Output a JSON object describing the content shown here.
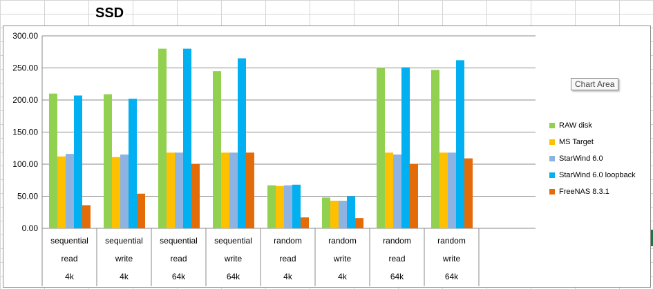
{
  "sheet": {
    "title": "SSD"
  },
  "tooltip": {
    "label": "Chart Area"
  },
  "colors": {
    "gridline": "#888888",
    "chart_border": "#888888"
  },
  "chart_data": {
    "type": "bar",
    "title": "",
    "xlabel": "",
    "ylabel": "",
    "ylim": [
      0,
      300
    ],
    "yticks": [
      "0.00",
      "50.00",
      "100.00",
      "150.00",
      "200.00",
      "250.00",
      "300.00"
    ],
    "grid": true,
    "legend_position": "right",
    "categories": [
      [
        "sequential",
        "read",
        "4k"
      ],
      [
        "sequential",
        "write",
        "4k"
      ],
      [
        "sequential",
        "read",
        "64k"
      ],
      [
        "sequential",
        "write",
        "64k"
      ],
      [
        "random",
        "read",
        "4k"
      ],
      [
        "random",
        "write",
        "4k"
      ],
      [
        "random",
        "read",
        "64k"
      ],
      [
        "random",
        "write",
        "64k"
      ]
    ],
    "series": [
      {
        "name": "RAW disk",
        "color": "#92d050",
        "values": [
          210,
          209,
          280,
          245,
          67,
          48,
          250,
          247
        ]
      },
      {
        "name": "MS Target",
        "color": "#ffc000",
        "values": [
          112,
          111,
          118,
          118,
          66,
          43,
          118,
          118
        ]
      },
      {
        "name": "StarWind 6.0",
        "color": "#8db3e2",
        "values": [
          116,
          115,
          118,
          118,
          67,
          43,
          115,
          118
        ]
      },
      {
        "name": "StarWind 6.0 loopback",
        "color": "#00b0f0",
        "values": [
          207,
          202,
          280,
          265,
          68,
          50,
          251,
          262
        ]
      },
      {
        "name": "FreeNAS 8.3.1",
        "color": "#e36c09",
        "values": [
          36,
          54,
          100,
          118,
          17,
          16,
          100,
          109
        ]
      }
    ]
  }
}
